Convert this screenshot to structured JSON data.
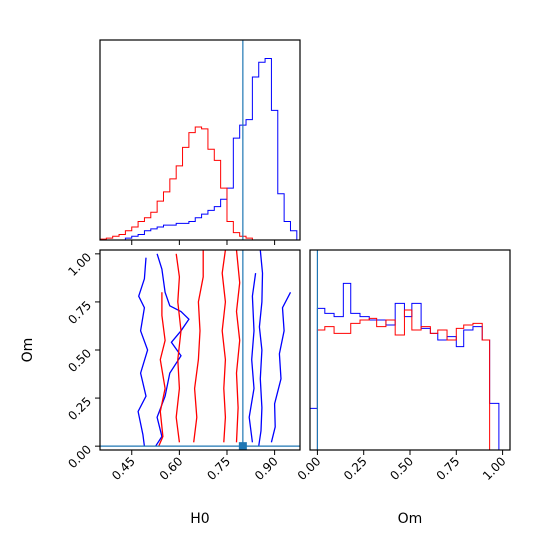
{
  "chart_data": {
    "type": "corner",
    "parameters": [
      "H0",
      "Om"
    ],
    "truths": {
      "H0": 0.8,
      "Om": 0.0
    },
    "colors": {
      "blue": "#0000ff",
      "red": "#ff0000",
      "truth": "#1f77b4"
    },
    "panels": [
      {
        "kind": "histogram",
        "param": "H0",
        "xlim": [
          0.35,
          0.98
        ],
        "ylim": [
          0,
          1.08
        ],
        "x_ticks": [
          0.45,
          0.6,
          0.75,
          0.9
        ],
        "bin_edges": [
          0.35,
          0.37,
          0.39,
          0.41,
          0.43,
          0.45,
          0.47,
          0.49,
          0.51,
          0.53,
          0.55,
          0.57,
          0.59,
          0.61,
          0.63,
          0.65,
          0.67,
          0.69,
          0.71,
          0.73,
          0.75,
          0.77,
          0.79,
          0.81,
          0.83,
          0.85,
          0.87,
          0.89,
          0.91,
          0.93,
          0.95,
          0.97
        ],
        "series": [
          {
            "name": "blue",
            "color": "#0000ff",
            "values": [
              0,
              0,
              0,
              0,
              0.01,
              0.02,
              0.03,
              0.05,
              0.06,
              0.07,
              0.08,
              0.08,
              0.09,
              0.09,
              0.1,
              0.12,
              0.14,
              0.16,
              0.18,
              0.22,
              0.28,
              0.55,
              0.62,
              0.65,
              0.88,
              0.96,
              0.98,
              0.7,
              0.25,
              0.1,
              0.05
            ]
          },
          {
            "name": "red",
            "color": "#ff0000",
            "values": [
              0.005,
              0.01,
              0.02,
              0.03,
              0.05,
              0.07,
              0.1,
              0.12,
              0.15,
              0.21,
              0.26,
              0.33,
              0.4,
              0.5,
              0.58,
              0.61,
              0.6,
              0.49,
              0.43,
              0.28,
              0.1,
              0.04,
              0.02,
              0.01,
              0,
              0,
              0,
              0,
              0,
              0,
              0
            ]
          }
        ]
      },
      {
        "kind": "contour",
        "x_param": "H0",
        "y_param": "Om",
        "xlim": [
          0.35,
          0.98
        ],
        "ylim": [
          -0.02,
          1.02
        ],
        "x_ticks": [
          0.45,
          0.6,
          0.75,
          0.9
        ],
        "y_ticks": [
          0.0,
          0.25,
          0.5,
          0.75,
          1.0
        ],
        "truth_point": [
          0.8,
          0.0
        ],
        "blue_contours": [
          [
            [
              0.855,
              1.02
            ],
            [
              0.862,
              0.9
            ],
            [
              0.86,
              0.75
            ],
            [
              0.852,
              0.62
            ],
            [
              0.86,
              0.5
            ],
            [
              0.855,
              0.35
            ],
            [
              0.86,
              0.2
            ],
            [
              0.857,
              0.08
            ],
            [
              0.85,
              0.0
            ]
          ],
          [
            [
              0.95,
              0.8
            ],
            [
              0.925,
              0.72
            ],
            [
              0.93,
              0.6
            ],
            [
              0.915,
              0.48
            ],
            [
              0.92,
              0.35
            ],
            [
              0.9,
              0.22
            ],
            [
              0.902,
              0.1
            ],
            [
              0.89,
              0.02
            ]
          ],
          [
            [
              0.84,
              0.9
            ],
            [
              0.83,
              0.78
            ],
            [
              0.835,
              0.6
            ],
            [
              0.828,
              0.45
            ],
            [
              0.835,
              0.3
            ],
            [
              0.82,
              0.15
            ],
            [
              0.83,
              0.02
            ]
          ],
          [
            [
              0.53,
              1.0
            ],
            [
              0.545,
              0.92
            ],
            [
              0.555,
              0.8
            ],
            [
              0.57,
              0.73
            ],
            [
              0.605,
              0.7
            ],
            [
              0.63,
              0.66
            ],
            [
              0.605,
              0.6
            ],
            [
              0.575,
              0.54
            ],
            [
              0.605,
              0.47
            ],
            [
              0.57,
              0.38
            ],
            [
              0.555,
              0.26
            ],
            [
              0.53,
              0.15
            ],
            [
              0.545,
              0.05
            ],
            [
              0.525,
              0.0
            ]
          ],
          [
            [
              0.495,
              0.98
            ],
            [
              0.49,
              0.87
            ],
            [
              0.472,
              0.78
            ],
            [
              0.49,
              0.72
            ],
            [
              0.478,
              0.6
            ],
            [
              0.5,
              0.5
            ],
            [
              0.478,
              0.38
            ],
            [
              0.495,
              0.26
            ],
            [
              0.47,
              0.18
            ],
            [
              0.485,
              0.06
            ],
            [
              0.49,
              0.0
            ]
          ]
        ],
        "red_contours": [
          [
            [
              0.745,
              1.02
            ],
            [
              0.735,
              0.9
            ],
            [
              0.745,
              0.75
            ],
            [
              0.735,
              0.6
            ],
            [
              0.745,
              0.45
            ],
            [
              0.74,
              0.3
            ],
            [
              0.745,
              0.15
            ],
            [
              0.74,
              0.02
            ]
          ],
          [
            [
              0.675,
              1.02
            ],
            [
              0.675,
              0.88
            ],
            [
              0.66,
              0.75
            ],
            [
              0.665,
              0.6
            ],
            [
              0.66,
              0.45
            ],
            [
              0.648,
              0.3
            ],
            [
              0.655,
              0.15
            ],
            [
              0.645,
              0.02
            ]
          ],
          [
            [
              0.59,
              1.0
            ],
            [
              0.6,
              0.88
            ],
            [
              0.595,
              0.75
            ],
            [
              0.605,
              0.6
            ],
            [
              0.595,
              0.45
            ],
            [
              0.6,
              0.3
            ],
            [
              0.59,
              0.15
            ],
            [
              0.6,
              0.02
            ]
          ],
          [
            [
              0.545,
              0.8
            ],
            [
              0.545,
              0.68
            ],
            [
              0.555,
              0.55
            ],
            [
              0.54,
              0.45
            ],
            [
              0.555,
              0.3
            ],
            [
              0.54,
              0.18
            ],
            [
              0.548,
              0.05
            ],
            [
              0.535,
              0.0
            ]
          ],
          [
            [
              0.78,
              1.02
            ],
            [
              0.79,
              0.85
            ],
            [
              0.78,
              0.7
            ],
            [
              0.79,
              0.55
            ],
            [
              0.78,
              0.38
            ],
            [
              0.785,
              0.2
            ],
            [
              0.78,
              0.02
            ]
          ]
        ]
      },
      {
        "kind": "histogram",
        "param": "Om",
        "xlim": [
          -0.04,
          1.04
        ],
        "ylim": [
          0,
          1.2
        ],
        "x_ticks": [
          0.0,
          0.25,
          0.5,
          0.75,
          1.0
        ],
        "bin_edges": [
          -0.04,
          0.0,
          0.04,
          0.09,
          0.14,
          0.18,
          0.23,
          0.28,
          0.32,
          0.37,
          0.42,
          0.47,
          0.51,
          0.56,
          0.61,
          0.65,
          0.7,
          0.75,
          0.79,
          0.84,
          0.89,
          0.93,
          0.98,
          1.03
        ],
        "series": [
          {
            "name": "blue",
            "color": "#0000ff",
            "values": [
              0.25,
              0.85,
              0.82,
              0.8,
              1.0,
              0.82,
              0.8,
              0.78,
              0.78,
              0.75,
              0.88,
              0.8,
              0.88,
              0.73,
              0.7,
              0.66,
              0.68,
              0.62,
              0.72,
              0.74,
              0.66,
              0.28,
              0
            ]
          },
          {
            "name": "red",
            "color": "#ff0000",
            "values": [
              0,
              0.72,
              0.74,
              0.7,
              0.7,
              0.76,
              0.78,
              0.79,
              0.74,
              0.78,
              0.69,
              0.84,
              0.72,
              0.74,
              0.7,
              0.72,
              0.66,
              0.73,
              0.75,
              0.76,
              0.66,
              0.0,
              0
            ]
          }
        ]
      }
    ]
  }
}
